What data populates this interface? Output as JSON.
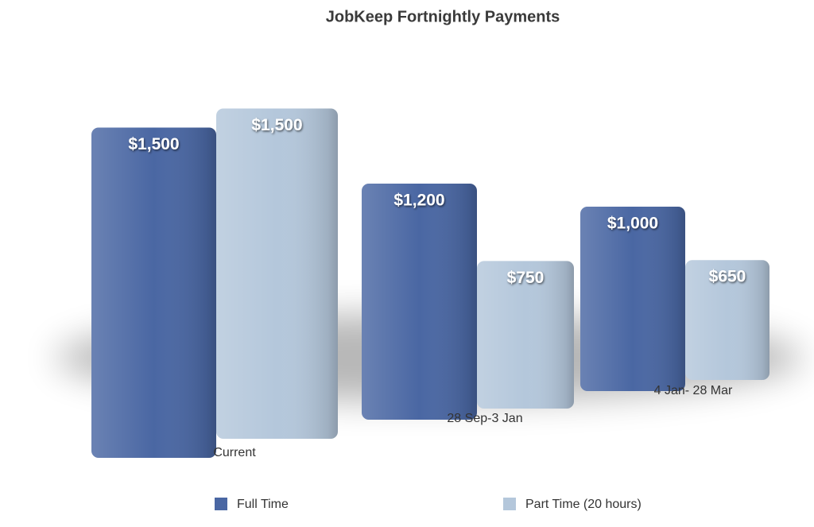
{
  "chart_data": {
    "type": "bar",
    "title": "JobKeep Fortnightly Payments",
    "categories": [
      "Current",
      "28 Sep-3 Jan",
      "4 Jan- 28 Mar"
    ],
    "series": [
      {
        "name": "Full Time",
        "color": "#4a67a3",
        "values": [
          1500,
          1200,
          1000
        ],
        "value_labels": [
          "$1,500",
          "$1,200",
          "$1,000"
        ]
      },
      {
        "name": "Part Time (20 hours)",
        "color": "#b4c7db",
        "values": [
          1500,
          750,
          650
        ],
        "value_labels": [
          "$1,500",
          "$750",
          "$650"
        ]
      }
    ]
  }
}
